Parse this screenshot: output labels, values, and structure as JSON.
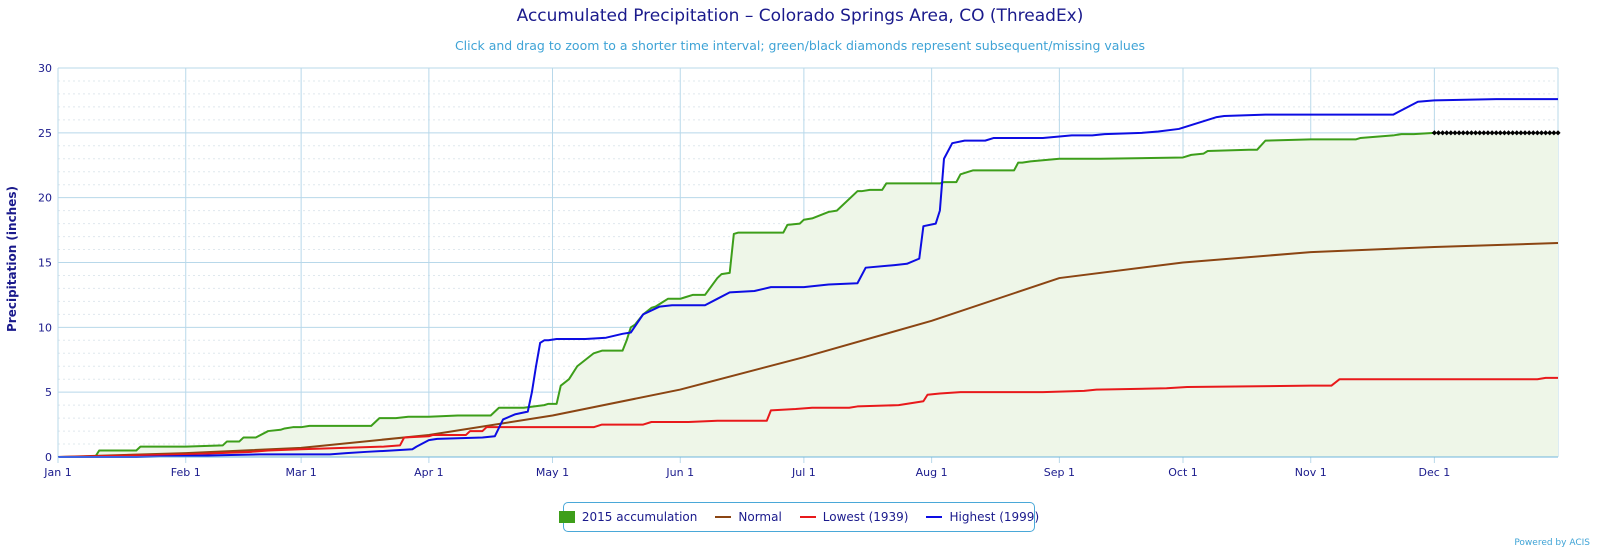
{
  "header": {
    "title": "Accumulated Precipitation – Colorado Springs Area, CO (ThreadEx)",
    "subtitle": "Click and drag to zoom to a shorter time interval; green/black diamonds represent subsequent/missing values"
  },
  "credit": "Powered by ACIS",
  "colors": {
    "accumulation": "#3d9e1a",
    "accumulation_fill": "#eef6e8",
    "normal": "#8b4513",
    "lowest": "#e8191b",
    "highest": "#0d0de3",
    "missing_marker": "#000000",
    "grid_major": "#b8d8ea",
    "axis_text": "#1a1a8c"
  },
  "chart_data": {
    "type": "line",
    "title": "Accumulated Precipitation – Colorado Springs Area, CO (ThreadEx)",
    "subtitle": "Click and drag to zoom to a shorter time interval; green/black diamonds represent subsequent/missing values",
    "xlabel": "",
    "ylabel": "Precipitation (inches)",
    "xlim": [
      1,
      365
    ],
    "ylim": [
      0,
      30
    ],
    "y_ticks": [
      0,
      5,
      10,
      15,
      20,
      25,
      30
    ],
    "x_ticks": [
      {
        "day": 1,
        "label": "Jan 1"
      },
      {
        "day": 32,
        "label": "Feb 1"
      },
      {
        "day": 60,
        "label": "Mar 1"
      },
      {
        "day": 91,
        "label": "Apr 1"
      },
      {
        "day": 121,
        "label": "May 1"
      },
      {
        "day": 152,
        "label": "Jun 1"
      },
      {
        "day": 182,
        "label": "Jul 1"
      },
      {
        "day": 213,
        "label": "Aug 1"
      },
      {
        "day": 244,
        "label": "Sep 1"
      },
      {
        "day": 274,
        "label": "Oct 1"
      },
      {
        "day": 305,
        "label": "Nov 1"
      },
      {
        "day": 335,
        "label": "Dec 1"
      }
    ],
    "grid": true,
    "legend_position": "bottom-center",
    "series": [
      {
        "name": "2015 accumulation",
        "style": "area",
        "color_key": "accumulation",
        "x": [
          1,
          10,
          11,
          20,
          21,
          32,
          41,
          42,
          45,
          46,
          49,
          52,
          55,
          56,
          58,
          60,
          62,
          65,
          71,
          77,
          79,
          83,
          86,
          87,
          91,
          98,
          103,
          106,
          108,
          112,
          114,
          119,
          120,
          122,
          123,
          125,
          127,
          131,
          133,
          136,
          137,
          138,
          139,
          140,
          141,
          143,
          145,
          146,
          147,
          149,
          152,
          153,
          155,
          158,
          161,
          162,
          164,
          165,
          166,
          177,
          178,
          181,
          182,
          184,
          188,
          190,
          195,
          196,
          198,
          201,
          202,
          210,
          211,
          215,
          216,
          217,
          218,
          219,
          220,
          222,
          223,
          233,
          234,
          235,
          237,
          244,
          253,
          254,
          274,
          276,
          279,
          280,
          290,
          292,
          294,
          305,
          316,
          317,
          325,
          327,
          330,
          335
        ],
        "y": [
          0,
          0,
          0.5,
          0.5,
          0.8,
          0.8,
          0.9,
          1.2,
          1.2,
          1.5,
          1.5,
          2.0,
          2.1,
          2.2,
          2.3,
          2.3,
          2.4,
          2.4,
          2.4,
          2.4,
          3.0,
          3.0,
          3.1,
          3.1,
          3.1,
          3.2,
          3.2,
          3.2,
          3.8,
          3.8,
          3.8,
          4.0,
          4.1,
          4.1,
          5.5,
          6.0,
          7.0,
          8.0,
          8.2,
          8.2,
          8.2,
          8.2,
          9.0,
          10.0,
          10.2,
          11.0,
          11.5,
          11.6,
          11.8,
          12.2,
          12.2,
          12.3,
          12.5,
          12.5,
          13.8,
          14.1,
          14.2,
          17.2,
          17.3,
          17.3,
          17.9,
          18.0,
          18.3,
          18.4,
          18.9,
          19.0,
          20.5,
          20.5,
          20.6,
          20.6,
          21.1,
          21.1,
          21.1,
          21.1,
          21.2,
          21.2,
          21.2,
          21.2,
          21.8,
          22.0,
          22.1,
          22.1,
          22.7,
          22.7,
          22.8,
          23.0,
          23.0,
          23.0,
          23.1,
          23.3,
          23.4,
          23.6,
          23.7,
          23.7,
          24.4,
          24.5,
          24.5,
          24.6,
          24.8,
          24.9,
          24.9,
          25.0
        ]
      },
      {
        "name": "Normal",
        "style": "line",
        "color_key": "normal",
        "x": [
          1,
          32,
          60,
          91,
          121,
          152,
          182,
          213,
          244,
          274,
          305,
          335,
          365
        ],
        "y": [
          0,
          0.3,
          0.7,
          1.7,
          3.2,
          5.2,
          7.7,
          10.5,
          13.8,
          15.0,
          15.8,
          16.2,
          16.5
        ]
      },
      {
        "name": "Lowest (1939)",
        "style": "line",
        "color_key": "lowest",
        "x": [
          1,
          32,
          48,
          52,
          60,
          80,
          84,
          85,
          91,
          92,
          100,
          101,
          104,
          105,
          107,
          110,
          111,
          125,
          131,
          133,
          143,
          145,
          154,
          161,
          168,
          173,
          174,
          180,
          184,
          186,
          193,
          195,
          205,
          211,
          212,
          215,
          220,
          230,
          240,
          250,
          253,
          270,
          275,
          305,
          306,
          310,
          312,
          335,
          360,
          362,
          365
        ],
        "y": [
          0,
          0.2,
          0.4,
          0.5,
          0.6,
          0.8,
          0.9,
          1.5,
          1.6,
          1.7,
          1.7,
          2.0,
          2.0,
          2.3,
          2.3,
          2.3,
          2.3,
          2.3,
          2.3,
          2.5,
          2.5,
          2.7,
          2.7,
          2.8,
          2.8,
          2.8,
          3.6,
          3.7,
          3.8,
          3.8,
          3.8,
          3.9,
          4.0,
          4.3,
          4.8,
          4.9,
          5.0,
          5.0,
          5.0,
          5.1,
          5.2,
          5.3,
          5.4,
          5.5,
          5.5,
          5.5,
          6.0,
          6.0,
          6.0,
          6.1,
          6.1
        ]
      },
      {
        "name": "Highest (1999)",
        "style": "line",
        "color_key": "highest",
        "x": [
          1,
          20,
          50,
          60,
          67,
          71,
          76,
          82,
          87,
          88,
          91,
          93,
          104,
          107,
          109,
          112,
          115,
          116,
          117,
          118,
          119,
          120,
          122,
          129,
          134,
          138,
          140,
          143,
          147,
          150,
          152,
          158,
          161,
          164,
          170,
          174,
          182,
          188,
          195,
          197,
          204,
          207,
          210,
          211,
          214,
          215,
          216,
          218,
          221,
          226,
          228,
          240,
          247,
          252,
          255,
          264,
          268,
          273,
          282,
          284,
          294,
          300,
          325,
          331,
          335,
          350,
          365
        ],
        "y": [
          0,
          0,
          0.2,
          0.2,
          0.2,
          0.3,
          0.4,
          0.5,
          0.6,
          0.8,
          1.3,
          1.4,
          1.5,
          1.6,
          2.9,
          3.3,
          3.5,
          5.0,
          7.0,
          8.8,
          9.0,
          9.0,
          9.1,
          9.1,
          9.2,
          9.5,
          9.6,
          11.0,
          11.6,
          11.7,
          11.7,
          11.7,
          12.2,
          12.7,
          12.8,
          13.1,
          13.1,
          13.3,
          13.4,
          14.6,
          14.8,
          14.9,
          15.3,
          17.8,
          18.0,
          19.0,
          23.0,
          24.2,
          24.4,
          24.4,
          24.6,
          24.6,
          24.8,
          24.8,
          24.9,
          25.0,
          25.1,
          25.3,
          26.2,
          26.3,
          26.4,
          26.4,
          26.4,
          27.4,
          27.5,
          27.6,
          27.6
        ]
      },
      {
        "name": "",
        "style": "missing-markers",
        "color_key": "missing_marker",
        "x": [
          335,
          336,
          337,
          338,
          339,
          340,
          341,
          342,
          343,
          344,
          345,
          346,
          347,
          348,
          349,
          350,
          351,
          352,
          353,
          354,
          355,
          356,
          357,
          358,
          359,
          360,
          361,
          362,
          363,
          364,
          365
        ],
        "y": [
          25.0,
          25.0,
          25.0,
          25.0,
          25.0,
          25.0,
          25.0,
          25.0,
          25.0,
          25.0,
          25.0,
          25.0,
          25.0,
          25.0,
          25.0,
          25.0,
          25.0,
          25.0,
          25.0,
          25.0,
          25.0,
          25.0,
          25.0,
          25.0,
          25.0,
          25.0,
          25.0,
          25.0,
          25.0,
          25.0,
          25.0
        ]
      }
    ]
  },
  "legend": {
    "items": [
      {
        "label": "2015 accumulation",
        "color_key": "accumulation",
        "kind": "box"
      },
      {
        "label": "Normal",
        "color_key": "normal",
        "kind": "line"
      },
      {
        "label": "Lowest (1939)",
        "color_key": "lowest",
        "kind": "line"
      },
      {
        "label": "Highest (1999)",
        "color_key": "highest",
        "kind": "line"
      }
    ]
  }
}
